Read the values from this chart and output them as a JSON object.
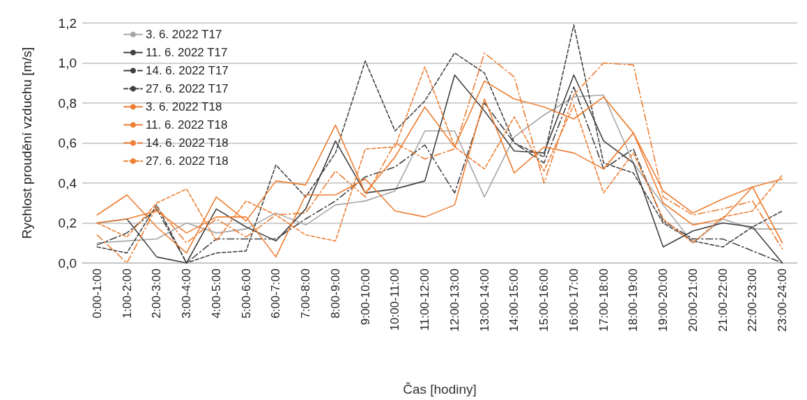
{
  "chart_data": {
    "type": "line",
    "xlabel": "Čas [hodiny]",
    "ylabel": "Rychlost proudění vzduchu [m/s]",
    "categories": [
      "0:00-1:00",
      "1:00-2:00",
      "2:00-3:00",
      "3:00-4:00",
      "4:00-5:00",
      "5:00-6:00",
      "6:00-7:00",
      "7:00-8:00",
      "8:00-9:00",
      "9:00-10:00",
      "10:00-11:00",
      "11:00-12:00",
      "12:00-13:00",
      "13:00-14:00",
      "14:00-15:00",
      "15:00-16:00",
      "16:00-17:00",
      "17:00-18:00",
      "18:00-19:00",
      "19:00-20:00",
      "20:00-21:00",
      "21:00-22:00",
      "22:00-23:00",
      "23:00-24:00"
    ],
    "series": [
      {
        "name": "3. 6. 2022 T17",
        "color": "#a5a5a5",
        "line_style": "solid",
        "values": [
          0.1,
          0.11,
          0.12,
          0.2,
          0.15,
          0.17,
          0.25,
          0.19,
          0.29,
          0.31,
          0.36,
          0.66,
          0.66,
          0.33,
          0.63,
          0.74,
          0.83,
          0.84,
          0.5,
          0.29,
          0.1,
          0.22,
          0.17,
          0.17
        ]
      },
      {
        "name": "11. 6. 2022 T17",
        "color": "#404040",
        "line_style": "solid",
        "values": [
          0.2,
          0.22,
          0.03,
          0.0,
          0.27,
          0.18,
          0.11,
          0.27,
          0.61,
          0.35,
          0.37,
          0.41,
          0.94,
          0.76,
          0.56,
          0.55,
          0.94,
          0.61,
          0.5,
          0.08,
          0.16,
          0.2,
          0.18,
          0.0
        ]
      },
      {
        "name": "14. 6. 2022 T17",
        "color": "#404040",
        "line_style": "dashdot",
        "values": [
          0.09,
          0.15,
          0.27,
          0.0,
          0.12,
          0.12,
          0.12,
          0.22,
          0.31,
          0.43,
          0.48,
          0.59,
          0.35,
          0.8,
          0.6,
          0.5,
          0.88,
          0.47,
          0.57,
          0.21,
          0.12,
          0.12,
          0.06,
          0.0
        ]
      },
      {
        "name": "27. 6. 2022 T17",
        "color": "#404040",
        "line_style": "dashed",
        "values": [
          0.08,
          0.05,
          0.29,
          0.0,
          0.05,
          0.06,
          0.49,
          0.33,
          0.55,
          1.01,
          0.66,
          0.81,
          1.05,
          0.95,
          0.6,
          0.53,
          1.19,
          0.5,
          0.45,
          0.2,
          0.11,
          0.08,
          0.18,
          0.26
        ]
      },
      {
        "name": "3. 6. 2022 T18",
        "color": "#ed7d31",
        "line_style": "solid",
        "values": [
          0.24,
          0.34,
          0.18,
          0.05,
          0.33,
          0.21,
          0.41,
          0.39,
          0.69,
          0.35,
          0.53,
          0.78,
          0.58,
          0.91,
          0.82,
          0.78,
          0.72,
          0.83,
          0.65,
          0.36,
          0.25,
          0.32,
          0.38,
          0.42
        ]
      },
      {
        "name": "11. 6. 2022 T18",
        "color": "#ed7d31",
        "line_style": "solid",
        "values": [
          0.2,
          0.22,
          0.26,
          0.15,
          0.23,
          0.23,
          0.03,
          0.34,
          0.34,
          0.42,
          0.26,
          0.23,
          0.29,
          0.82,
          0.45,
          0.58,
          0.55,
          0.47,
          0.65,
          0.3,
          0.19,
          0.22,
          0.38,
          0.1
        ]
      },
      {
        "name": "14. 6. 2022 T18",
        "color": "#ed7d31",
        "line_style": "dashdot",
        "values": [
          0.14,
          0.0,
          0.28,
          0.1,
          0.22,
          0.13,
          0.24,
          0.25,
          0.46,
          0.33,
          0.6,
          0.52,
          0.57,
          1.05,
          0.93,
          0.4,
          0.84,
          1.0,
          0.99,
          0.33,
          0.24,
          0.27,
          0.31,
          0.07
        ]
      },
      {
        "name": "27. 6. 2022 T18",
        "color": "#ed7d31",
        "line_style": "dashed",
        "values": [
          0.2,
          0.13,
          0.3,
          0.37,
          0.11,
          0.31,
          0.24,
          0.14,
          0.11,
          0.57,
          0.58,
          0.98,
          0.58,
          0.47,
          0.73,
          0.46,
          0.79,
          0.35,
          0.55,
          0.22,
          0.1,
          0.23,
          0.26,
          0.44
        ]
      }
    ],
    "ylim": [
      0,
      1.2
    ],
    "yticks": [
      {
        "value": 0,
        "label": "0,0"
      },
      {
        "value": 0.2,
        "label": "0,2"
      },
      {
        "value": 0.4,
        "label": "0,4"
      },
      {
        "value": 0.6,
        "label": "0,6"
      },
      {
        "value": 0.8,
        "label": "0,8"
      },
      {
        "value": 1.0,
        "label": "1,0"
      },
      {
        "value": 1.2,
        "label": "1,2"
      }
    ],
    "grid": "y",
    "legend": "top left",
    "marker": "none"
  }
}
